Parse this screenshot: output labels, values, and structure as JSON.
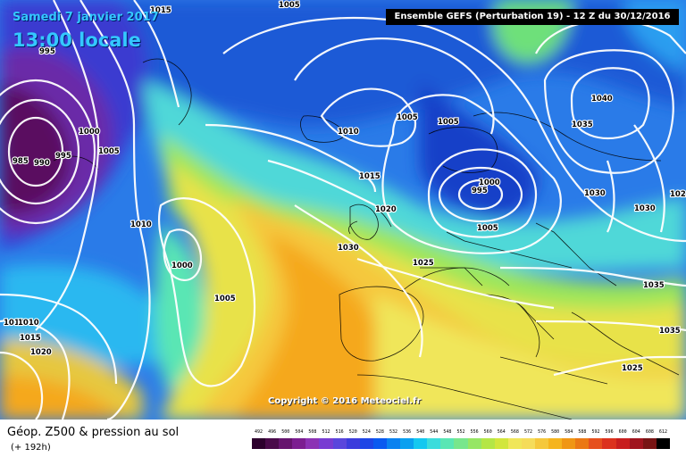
{
  "header": {
    "date_line": "Samedi 7 janvier 2017",
    "time_line": "13:00 locale",
    "run_info": "Ensemble GEFS  (Perturbation 19)  -  12 Z du 30/12/2016"
  },
  "map": {
    "copyright": "Copyright © 2016 Meteociel.fr",
    "pressure_labels": [
      "1015",
      "1005",
      "995",
      "1000",
      "1005",
      "985",
      "990",
      "995",
      "1010",
      "1000",
      "1005",
      "1010",
      "1010",
      "1015",
      "1020",
      "1005",
      "1005",
      "1010",
      "1015",
      "1020",
      "1030",
      "1025",
      "995",
      "1000",
      "1005",
      "1040",
      "1035",
      "1030",
      "1030",
      "102",
      "1035",
      "1035",
      "1025"
    ]
  },
  "footer": {
    "title": "Géop. Z500 & pression au sol",
    "lead_time": "(+ 192h)"
  },
  "legend": {
    "labels": [
      "492",
      "496",
      "500",
      "504",
      "508",
      "512",
      "516",
      "520",
      "524",
      "528",
      "532",
      "536",
      "540",
      "544",
      "548",
      "552",
      "556",
      "560",
      "564",
      "568",
      "572",
      "576",
      "580",
      "584",
      "588",
      "592",
      "596",
      "600",
      "604",
      "608",
      "612"
    ],
    "colors": [
      "#2d002d",
      "#4a0a4a",
      "#66146e",
      "#7c1e90",
      "#8c32b4",
      "#783cd2",
      "#5a46dc",
      "#3c3cdc",
      "#1e46e6",
      "#0a5af0",
      "#0a82f0",
      "#0aa0f0",
      "#14c8f0",
      "#3cdcdc",
      "#5ae6b4",
      "#78e68c",
      "#96e664",
      "#b4e646",
      "#d2e63c",
      "#f0e65a",
      "#f5dc5a",
      "#f5c83c",
      "#f5b41e",
      "#f09614",
      "#eb7814",
      "#e6501e",
      "#dc321e",
      "#c81e1e",
      "#a0141e",
      "#781414",
      "#000000"
    ]
  }
}
